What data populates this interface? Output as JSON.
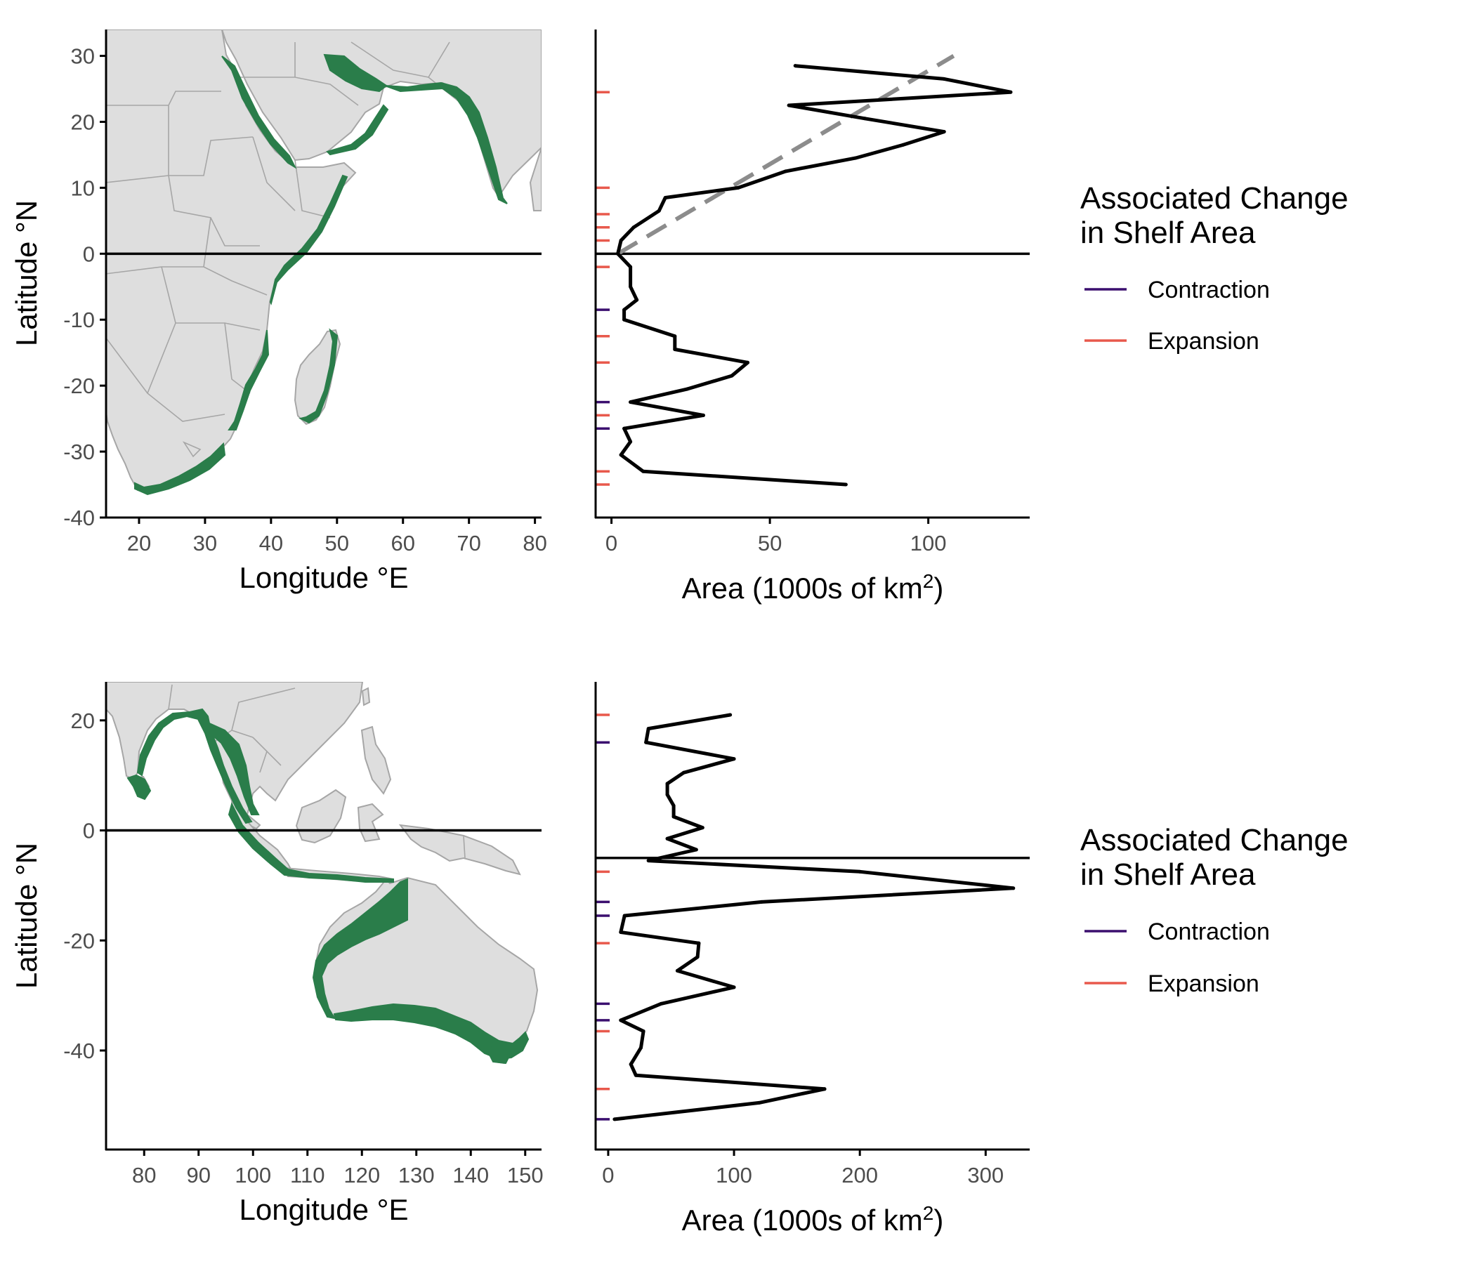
{
  "figure": {
    "legend": {
      "title_line1": "Associated Change",
      "title_line2": "in Shelf Area",
      "items": [
        {
          "label": "Contraction",
          "color": "#3b0f6f"
        },
        {
          "label": "Expansion",
          "color": "#e8594c"
        }
      ]
    },
    "colors": {
      "land": "#dedede",
      "land_border": "#a6a6a6",
      "shelf": "#2a7d4a",
      "profile_line": "#000000",
      "trend_line": "#8c8c8c",
      "contraction": "#3b0f6f",
      "expansion": "#e8594c"
    }
  },
  "maps": [
    {
      "xlabel": "Longitude °E",
      "ylabel": "Latitude °N",
      "xticks": [
        20,
        30,
        40,
        50,
        60,
        70,
        80
      ],
      "yticks": [
        30,
        20,
        10,
        0,
        -10,
        -20,
        -30,
        -40
      ],
      "xlim": [
        15,
        81
      ],
      "ylim": [
        -40,
        34
      ],
      "equator_lat": 0
    },
    {
      "xlabel": "Longitude °E",
      "ylabel": "Latitude °N",
      "xticks": [
        80,
        90,
        100,
        110,
        120,
        130,
        140,
        150
      ],
      "yticks": [
        20,
        0,
        -20,
        -40
      ],
      "xlim": [
        73,
        153
      ],
      "ylim": [
        -58,
        27
      ],
      "equator_lat": 0
    }
  ],
  "chart_data": [
    {
      "type": "line",
      "panel": "western-indian-ocean-profile",
      "xlabel": "Area (1000s of km²)",
      "xticks": [
        0,
        50,
        100
      ],
      "xlim": [
        -5,
        132
      ],
      "ylim": [
        -40,
        34
      ],
      "equator_lat": 0,
      "profile": {
        "lat": [
          28.5,
          26.5,
          24.5,
          22.5,
          20.5,
          18.5,
          16.5,
          14.5,
          12.5,
          10.0,
          8.5,
          6.5,
          4.0,
          2.0,
          0.0,
          -2.0,
          -5.0,
          -7.0,
          -8.5,
          -10.0,
          -12.5,
          -14.5,
          -16.5,
          -18.5,
          -20.5,
          -22.5,
          -24.5,
          -26.5,
          -28.5,
          -30.5,
          -33.0,
          -35.0
        ],
        "area": [
          58,
          105,
          126,
          56,
          80,
          105,
          92,
          77,
          55,
          40,
          17,
          15,
          7,
          3,
          2,
          6,
          6,
          8,
          4,
          4,
          20,
          20,
          43,
          38,
          24,
          6,
          29,
          4,
          6,
          3,
          10,
          74
        ]
      },
      "trend": {
        "area": [
          2,
          108
        ],
        "lat": [
          0,
          30
        ]
      },
      "change_ticks": [
        {
          "lat": 24.5,
          "type": "Expansion"
        },
        {
          "lat": 10.0,
          "type": "Expansion"
        },
        {
          "lat": 6.0,
          "type": "Expansion"
        },
        {
          "lat": 4.0,
          "type": "Expansion"
        },
        {
          "lat": 2.0,
          "type": "Expansion"
        },
        {
          "lat": -2.0,
          "type": "Expansion"
        },
        {
          "lat": -8.5,
          "type": "Contraction"
        },
        {
          "lat": -12.5,
          "type": "Expansion"
        },
        {
          "lat": -16.5,
          "type": "Expansion"
        },
        {
          "lat": -22.5,
          "type": "Contraction"
        },
        {
          "lat": -24.5,
          "type": "Expansion"
        },
        {
          "lat": -26.5,
          "type": "Contraction"
        },
        {
          "lat": -33.0,
          "type": "Expansion"
        },
        {
          "lat": -35.0,
          "type": "Expansion"
        }
      ]
    },
    {
      "type": "line",
      "panel": "eastern-indian-ocean-profile",
      "xlabel": "Area (1000s of km²)",
      "xticks": [
        0,
        100,
        200,
        300
      ],
      "xlim": [
        -10,
        335
      ],
      "ylim": [
        -58,
        27
      ],
      "reference_lat": -5,
      "profile": {
        "lat": [
          21.0,
          18.5,
          16.0,
          13.0,
          10.5,
          8.5,
          6.5,
          4.5,
          2.5,
          0.5,
          -1.5,
          -3.5,
          -5.5,
          -7.5,
          -10.5,
          -13.0,
          -15.5,
          -18.5,
          -20.5,
          -23.0,
          -25.5,
          -28.5,
          -31.5,
          -34.5,
          -36.5,
          -39.5,
          -42.5,
          -44.5,
          -47.0,
          -49.5,
          -52.5
        ],
        "area": [
          97,
          32,
          30,
          100,
          60,
          47,
          47,
          52,
          52,
          75,
          47,
          70,
          32,
          200,
          322,
          122,
          13,
          10,
          72,
          71,
          55,
          100,
          42,
          10,
          28,
          26,
          18,
          22,
          172,
          120,
          5
        ]
      },
      "change_ticks": [
        {
          "lat": 21.0,
          "type": "Expansion"
        },
        {
          "lat": 16.0,
          "type": "Contraction"
        },
        {
          "lat": -7.5,
          "type": "Expansion"
        },
        {
          "lat": -13.0,
          "type": "Contraction"
        },
        {
          "lat": -15.5,
          "type": "Contraction"
        },
        {
          "lat": -20.5,
          "type": "Expansion"
        },
        {
          "lat": -31.5,
          "type": "Contraction"
        },
        {
          "lat": -34.5,
          "type": "Contraction"
        },
        {
          "lat": -36.5,
          "type": "Expansion"
        },
        {
          "lat": -47.0,
          "type": "Expansion"
        },
        {
          "lat": -52.5,
          "type": "Contraction"
        }
      ]
    }
  ]
}
